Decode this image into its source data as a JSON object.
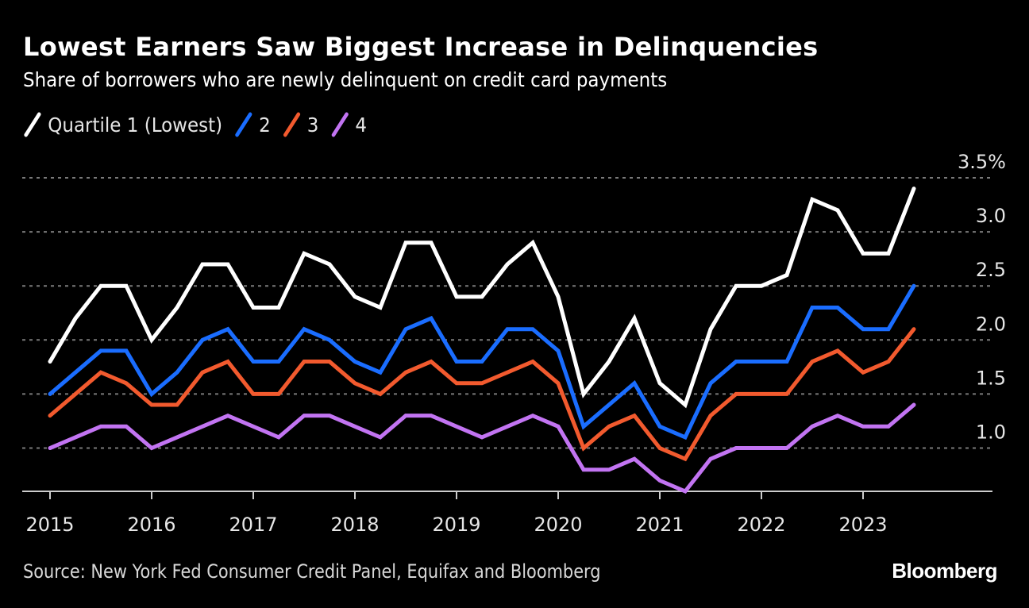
{
  "chart_data": {
    "type": "line",
    "title": "Lowest Earners Saw Biggest Increase in Delinquencies",
    "subtitle": "Share of borrowers who are newly delinquent on credit card payments",
    "xlabel": "",
    "ylabel": "",
    "x": [
      "2015Q1",
      "2015Q2",
      "2015Q3",
      "2015Q4",
      "2016Q1",
      "2016Q2",
      "2016Q3",
      "2016Q4",
      "2017Q1",
      "2017Q2",
      "2017Q3",
      "2017Q4",
      "2018Q1",
      "2018Q2",
      "2018Q3",
      "2018Q4",
      "2019Q1",
      "2019Q2",
      "2019Q3",
      "2019Q4",
      "2020Q1",
      "2020Q2",
      "2020Q3",
      "2020Q4",
      "2021Q1",
      "2021Q2",
      "2021Q3",
      "2021Q4",
      "2022Q1",
      "2022Q2",
      "2022Q3",
      "2022Q4",
      "2023Q1",
      "2023Q2",
      "2023Q3"
    ],
    "x_tick_labels": [
      "2015",
      "2016",
      "2017",
      "2018",
      "2019",
      "2020",
      "2021",
      "2022",
      "2023"
    ],
    "y_tick_labels": [
      "1.0",
      "1.5",
      "2.0",
      "2.5",
      "3.0",
      "3.5%"
    ],
    "y_ticks": [
      1.0,
      1.5,
      2.0,
      2.5,
      3.0,
      3.5
    ],
    "ylim": [
      0.6,
      3.5
    ],
    "grid": true,
    "legend_position": "top-left",
    "series": [
      {
        "name": "Quartile 1 (Lowest)",
        "color": "#ffffff",
        "values": [
          1.8,
          2.2,
          2.5,
          2.5,
          2.0,
          2.3,
          2.7,
          2.7,
          2.3,
          2.3,
          2.8,
          2.7,
          2.4,
          2.3,
          2.9,
          2.9,
          2.4,
          2.4,
          2.7,
          2.9,
          2.4,
          1.5,
          1.8,
          2.2,
          1.6,
          1.4,
          2.1,
          2.5,
          2.5,
          2.6,
          3.3,
          3.2,
          2.8,
          2.8,
          3.4
        ]
      },
      {
        "name": "2",
        "color": "#1a6dff",
        "values": [
          1.5,
          1.7,
          1.9,
          1.9,
          1.5,
          1.7,
          2.0,
          2.1,
          1.8,
          1.8,
          2.1,
          2.0,
          1.8,
          1.7,
          2.1,
          2.2,
          1.8,
          1.8,
          2.1,
          2.1,
          1.9,
          1.2,
          1.4,
          1.6,
          1.2,
          1.1,
          1.6,
          1.8,
          1.8,
          1.8,
          2.3,
          2.3,
          2.1,
          2.1,
          2.5
        ]
      },
      {
        "name": "3",
        "color": "#f25a2e",
        "values": [
          1.3,
          1.5,
          1.7,
          1.6,
          1.4,
          1.4,
          1.7,
          1.8,
          1.5,
          1.5,
          1.8,
          1.8,
          1.6,
          1.5,
          1.7,
          1.8,
          1.6,
          1.6,
          1.7,
          1.8,
          1.6,
          1.0,
          1.2,
          1.3,
          1.0,
          0.9,
          1.3,
          1.5,
          1.5,
          1.5,
          1.8,
          1.9,
          1.7,
          1.8,
          2.1
        ]
      },
      {
        "name": "4",
        "color": "#c274f2",
        "values": [
          1.0,
          1.1,
          1.2,
          1.2,
          1.0,
          1.1,
          1.2,
          1.3,
          1.2,
          1.1,
          1.3,
          1.3,
          1.2,
          1.1,
          1.3,
          1.3,
          1.2,
          1.1,
          1.2,
          1.3,
          1.2,
          0.8,
          0.8,
          0.9,
          0.7,
          0.6,
          0.9,
          1.0,
          1.0,
          1.0,
          1.2,
          1.3,
          1.2,
          1.2,
          1.4
        ]
      }
    ]
  },
  "footer": {
    "source": "Source: New York Fed Consumer Credit Panel, Equifax and Bloomberg",
    "brand": "Bloomberg"
  },
  "colors": {
    "background": "#000000",
    "gridline": "#7a7a7a",
    "axis": "#cccccc",
    "tick_text": "#e6e6e6"
  }
}
